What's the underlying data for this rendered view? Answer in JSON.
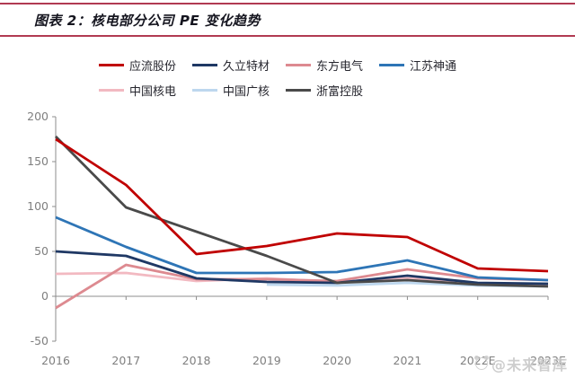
{
  "figure": {
    "title": "图表 2：核电部分公司 PE 变化趋势",
    "accent_color": "#b13a52"
  },
  "watermark": {
    "text": "@未来智库"
  },
  "chart_data": {
    "type": "line",
    "title": "核电部分公司 PE 变化趋势",
    "categories": [
      "2016",
      "2017",
      "2018",
      "2019",
      "2020",
      "2021",
      "2022E",
      "2023E"
    ],
    "series": [
      {
        "name": "应流股份",
        "color": "#c00000",
        "values": [
          175,
          124,
          47,
          56,
          70,
          66,
          31,
          28
        ]
      },
      {
        "name": "久立特材",
        "color": "#1f3864",
        "values": [
          50,
          45,
          20,
          16,
          15,
          23,
          15,
          14
        ]
      },
      {
        "name": "东方电气",
        "color": "#dd8a90",
        "values": [
          -13,
          35,
          19,
          19,
          17,
          30,
          20,
          18
        ]
      },
      {
        "name": "江苏神通",
        "color": "#2e75b6",
        "values": [
          88,
          55,
          26,
          26,
          27,
          40,
          21,
          18
        ]
      },
      {
        "name": "中国核电",
        "color": "#f2b9c1",
        "values": [
          25,
          26,
          17,
          20,
          16,
          20,
          14,
          13
        ]
      },
      {
        "name": "中国广核",
        "color": "#bdd7ee",
        "values": [
          null,
          null,
          null,
          13,
          12,
          15,
          12,
          11
        ]
      },
      {
        "name": "浙富控股",
        "color": "#4a4a4a",
        "values": [
          178,
          99,
          72,
          45,
          15,
          18,
          13,
          11
        ]
      }
    ],
    "ylim": [
      -50,
      200
    ],
    "y_ticks": [
      -50,
      0,
      50,
      100,
      150,
      200
    ],
    "xlabel": "",
    "ylabel": "",
    "grid": false,
    "legend_position": "top",
    "style": {
      "axis_color": "#8c8c8c",
      "tick_label_color": "#7f7f7f",
      "line_width": 2.8
    }
  }
}
